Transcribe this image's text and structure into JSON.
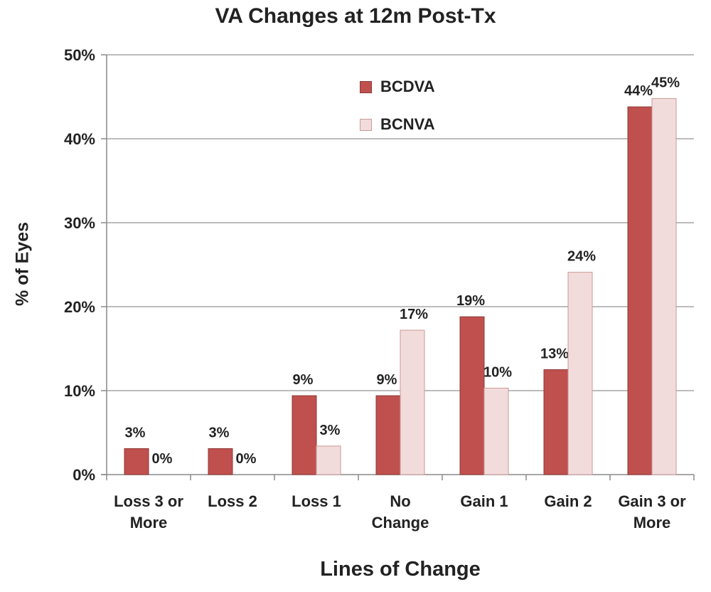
{
  "chart_data": {
    "type": "bar",
    "title": "VA Changes at 12m Post-Tx",
    "xlabel": "Lines of Change",
    "ylabel": "% of Eyes",
    "categories": [
      [
        "Loss 3 or",
        "More"
      ],
      [
        "Loss 2"
      ],
      [
        "Loss 1"
      ],
      [
        "No",
        "Change"
      ],
      [
        "Gain 1"
      ],
      [
        "Gain 2"
      ],
      [
        "Gain 3 or",
        "More"
      ]
    ],
    "series": [
      {
        "name": "BCDVA",
        "color": "#c0504d",
        "stroke": "#8c3a38",
        "values": [
          3.1,
          3.1,
          9.4,
          9.4,
          18.8,
          12.5,
          43.8
        ],
        "labels": [
          "3%",
          "3%",
          "9%",
          "9%",
          "19%",
          "13%",
          "44%"
        ]
      },
      {
        "name": "BCNVA",
        "color": "#f2dcdb",
        "stroke": "#c89a98",
        "values": [
          0,
          0,
          3.4,
          17.2,
          10.3,
          24.1,
          44.8
        ],
        "labels": [
          "0%",
          "0%",
          "3%",
          "17%",
          "10%",
          "24%",
          "45%"
        ]
      }
    ],
    "ylim": [
      0,
      50
    ],
    "yticks": [
      0,
      10,
      20,
      30,
      40,
      50
    ],
    "ytick_labels": [
      "0%",
      "10%",
      "20%",
      "30%",
      "40%",
      "50%"
    ],
    "grid": true,
    "legend": "top-center"
  }
}
